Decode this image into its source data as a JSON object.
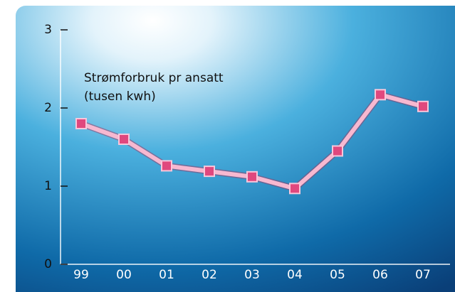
{
  "chart_data": {
    "type": "line",
    "title": "Strømforbruk pr ansatt",
    "subtitle": "(tusen kwh)",
    "categories": [
      "99",
      "00",
      "01",
      "02",
      "03",
      "04",
      "05",
      "06",
      "07"
    ],
    "series": [
      {
        "name": "Strømforbruk pr ansatt",
        "color": "#e0487e",
        "values": [
          1.8,
          1.6,
          1.26,
          1.19,
          1.12,
          0.97,
          1.45,
          2.17,
          2.02
        ]
      }
    ],
    "ylim": [
      0,
      3
    ],
    "yticks": [
      0,
      1,
      2,
      3
    ],
    "grid": false
  }
}
